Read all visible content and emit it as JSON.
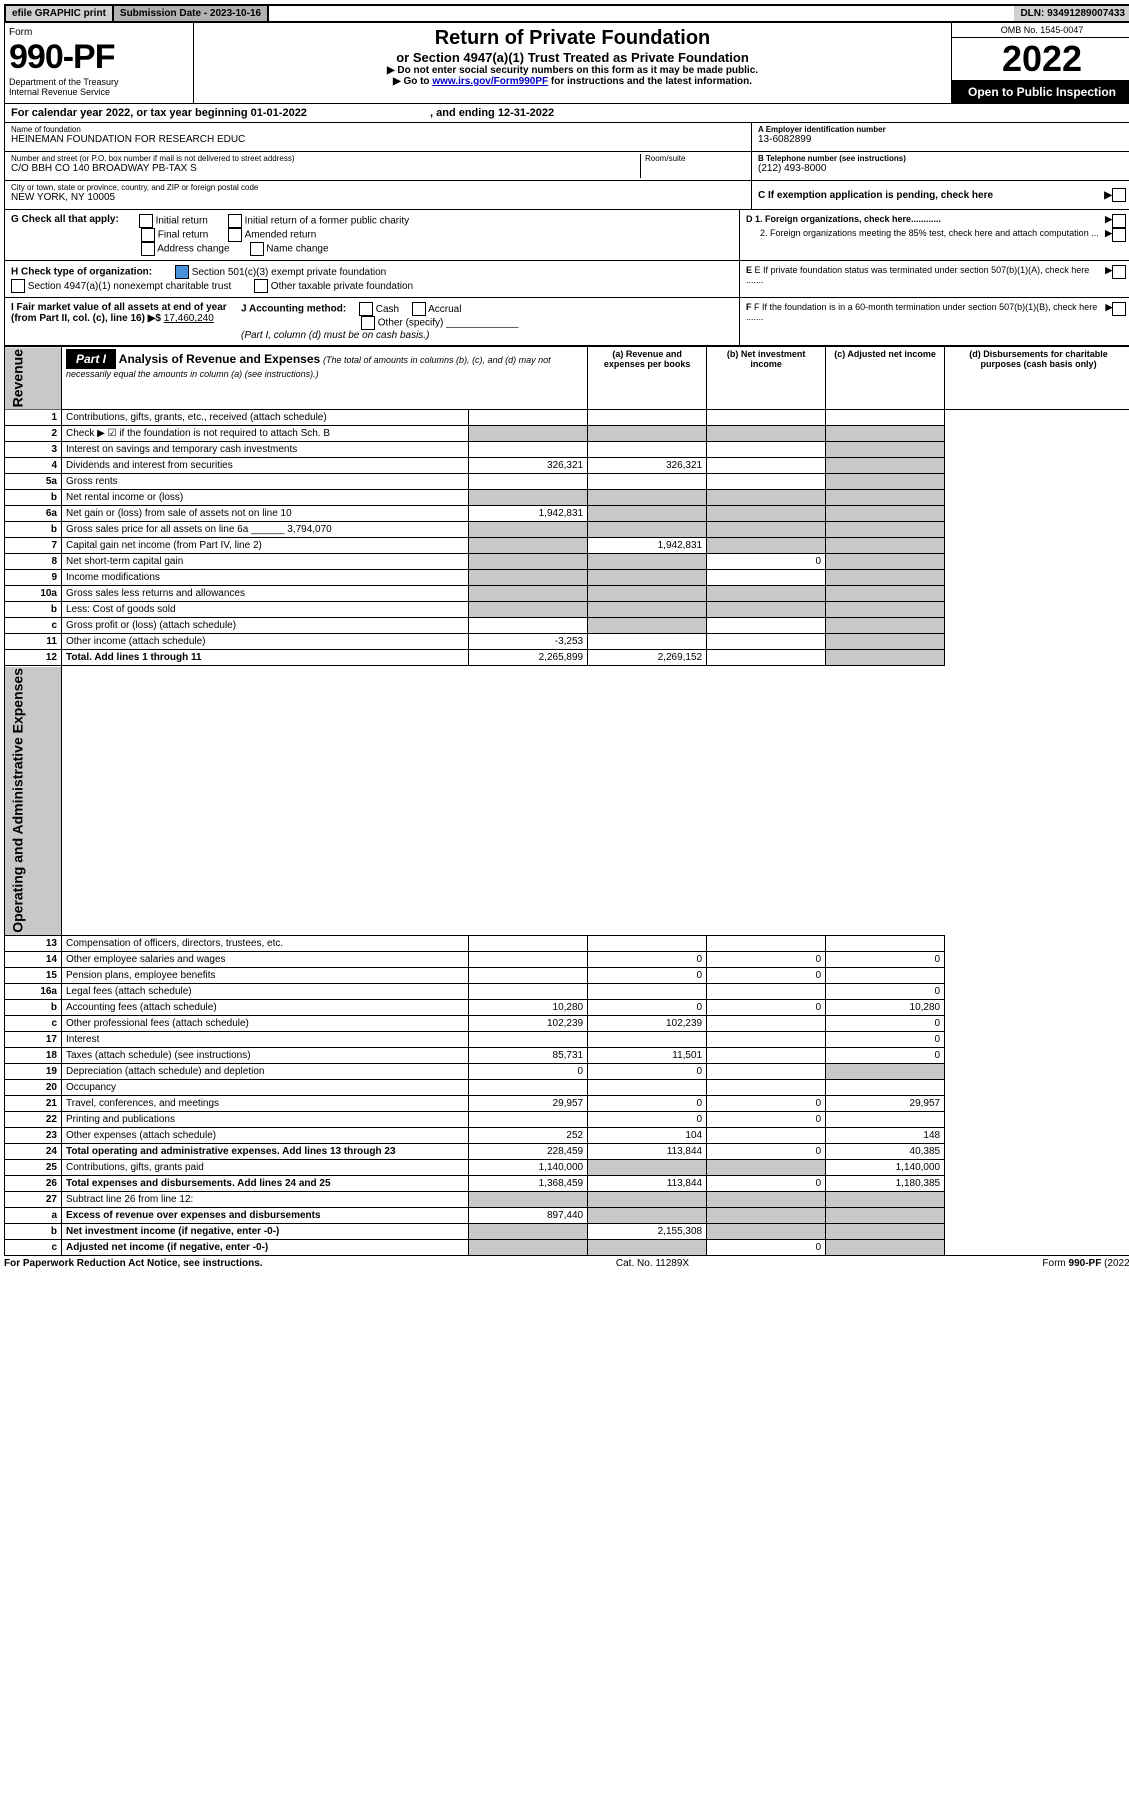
{
  "topbar": {
    "efile": "efile GRAPHIC print",
    "subdate_label": "Submission Date - ",
    "subdate": "2023-10-16",
    "dln_label": "DLN: ",
    "dln": "93491289007433"
  },
  "header": {
    "form_label": "Form",
    "form_no": "990-PF",
    "dept1": "Department of the Treasury",
    "dept2": "Internal Revenue Service",
    "title1": "Return of Private Foundation",
    "title2": "or Section 4947(a)(1) Trust Treated as Private Foundation",
    "title3": "▶ Do not enter social security numbers on this form as it may be made public.",
    "title4a": "▶ Go to ",
    "title4link": "www.irs.gov/Form990PF",
    "title4b": " for instructions and the latest information.",
    "omb": "OMB No. 1545-0047",
    "year": "2022",
    "open": "Open to Public Inspection"
  },
  "calyear": {
    "text1": "For calendar year 2022, or tax year beginning ",
    "begin": "01-01-2022",
    "text2": " , and ending ",
    "end": "12-31-2022"
  },
  "name": {
    "label": "Name of foundation",
    "value": "HEINEMAN FOUNDATION FOR RESEARCH EDUC"
  },
  "ein": {
    "label": "A Employer identification number",
    "value": "13-6082899"
  },
  "address": {
    "label": "Number and street (or P.O. box number if mail is not delivered to street address)",
    "value": "C/O BBH CO 140 BROADWAY PB-TAX S",
    "room_label": "Room/suite"
  },
  "phone": {
    "label": "B Telephone number (see instructions)",
    "value": "(212) 493-8000"
  },
  "city": {
    "label": "City or town, state or province, country, and ZIP or foreign postal code",
    "value": "NEW YORK, NY  10005"
  },
  "c_label": "C If exemption application is pending, check here",
  "g": {
    "label": "G Check all that apply:",
    "opt1": "Initial return",
    "opt2": "Initial return of a former public charity",
    "opt3": "Final return",
    "opt4": "Amended return",
    "opt5": "Address change",
    "opt6": "Name change"
  },
  "d": {
    "d1": "D 1. Foreign organizations, check here............",
    "d2": "2. Foreign organizations meeting the 85% test, check here and attach computation ..."
  },
  "h": {
    "label": "H Check type of organization:",
    "opt1": "Section 501(c)(3) exempt private foundation",
    "opt2": "Section 4947(a)(1) nonexempt charitable trust",
    "opt3": "Other taxable private foundation"
  },
  "e_label": "E If private foundation status was terminated under section 507(b)(1)(A), check here .......",
  "i": {
    "label": "I Fair market value of all assets at end of year (from Part II, col. (c), line 16) ▶$ ",
    "value": "17,460,240"
  },
  "j": {
    "label": "J Accounting method:",
    "cash": "Cash",
    "accrual": "Accrual",
    "other": "Other (specify)",
    "note": "(Part I, column (d) must be on cash basis.)"
  },
  "f_label": "F If the foundation is in a 60-month termination under section 507(b)(1)(B), check here .......",
  "part1": {
    "label": "Part I",
    "title": "Analysis of Revenue and Expenses",
    "subtitle": " (The total of amounts in columns (b), (c), and (d) may not necessarily equal the amounts in column (a) (see instructions).)",
    "col_a": "(a) Revenue and expenses per books",
    "col_b": "(b) Net investment income",
    "col_c": "(c) Adjusted net income",
    "col_d": "(d) Disbursements for charitable purposes (cash basis only)"
  },
  "sidelabels": {
    "revenue": "Revenue",
    "expenses": "Operating and Administrative Expenses"
  },
  "rows": [
    {
      "n": "1",
      "d": "",
      "a": "",
      "b": "",
      "c": "",
      "sa": false,
      "sb": false,
      "sc": false,
      "sd": false
    },
    {
      "n": "2",
      "d": "",
      "a": "",
      "b": "",
      "c": "",
      "sa": true,
      "sb": true,
      "sc": true,
      "sd": true
    },
    {
      "n": "3",
      "d": "",
      "a": "",
      "b": "",
      "c": "",
      "sa": false,
      "sb": false,
      "sc": false,
      "sd": true
    },
    {
      "n": "4",
      "d": "",
      "a": "326,321",
      "b": "326,321",
      "c": "",
      "sa": false,
      "sb": false,
      "sc": false,
      "sd": true
    },
    {
      "n": "5a",
      "d": "",
      "a": "",
      "b": "",
      "c": "",
      "sa": false,
      "sb": false,
      "sc": false,
      "sd": true
    },
    {
      "n": "b",
      "d": "",
      "a": "",
      "b": "",
      "c": "",
      "sa": true,
      "sb": true,
      "sc": true,
      "sd": true
    },
    {
      "n": "6a",
      "d": "",
      "a": "1,942,831",
      "b": "",
      "c": "",
      "sa": false,
      "sb": true,
      "sc": true,
      "sd": true
    },
    {
      "n": "b",
      "d": "",
      "a": "",
      "b": "",
      "c": "",
      "sa": true,
      "sb": true,
      "sc": true,
      "sd": true
    },
    {
      "n": "7",
      "d": "",
      "a": "",
      "b": "1,942,831",
      "c": "",
      "sa": true,
      "sb": false,
      "sc": true,
      "sd": true
    },
    {
      "n": "8",
      "d": "",
      "a": "",
      "b": "",
      "c": "0",
      "sa": true,
      "sb": true,
      "sc": false,
      "sd": true
    },
    {
      "n": "9",
      "d": "",
      "a": "",
      "b": "",
      "c": "",
      "sa": true,
      "sb": true,
      "sc": false,
      "sd": true
    },
    {
      "n": "10a",
      "d": "",
      "a": "",
      "b": "",
      "c": "",
      "sa": true,
      "sb": true,
      "sc": true,
      "sd": true
    },
    {
      "n": "b",
      "d": "",
      "a": "",
      "b": "",
      "c": "",
      "sa": true,
      "sb": true,
      "sc": true,
      "sd": true
    },
    {
      "n": "c",
      "d": "",
      "a": "",
      "b": "",
      "c": "",
      "sa": false,
      "sb": true,
      "sc": false,
      "sd": true
    },
    {
      "n": "11",
      "d": "",
      "a": "-3,253",
      "b": "",
      "c": "",
      "sa": false,
      "sb": false,
      "sc": false,
      "sd": true
    },
    {
      "n": "12",
      "d": "",
      "a": "2,265,899",
      "b": "2,269,152",
      "c": "",
      "sa": false,
      "sb": false,
      "sc": false,
      "sd": true,
      "bold": true
    },
    {
      "n": "13",
      "d": "",
      "a": "",
      "b": "",
      "c": "",
      "sa": false,
      "sb": false,
      "sc": false,
      "sd": false
    },
    {
      "n": "14",
      "d": "0",
      "a": "",
      "b": "0",
      "c": "0",
      "sa": false,
      "sb": false,
      "sc": false,
      "sd": false
    },
    {
      "n": "15",
      "d": "",
      "a": "",
      "b": "0",
      "c": "0",
      "sa": false,
      "sb": false,
      "sc": false,
      "sd": false
    },
    {
      "n": "16a",
      "d": "0",
      "a": "",
      "b": "",
      "c": "",
      "sa": false,
      "sb": false,
      "sc": false,
      "sd": false
    },
    {
      "n": "b",
      "d": "10,280",
      "a": "10,280",
      "b": "0",
      "c": "0",
      "sa": false,
      "sb": false,
      "sc": false,
      "sd": false
    },
    {
      "n": "c",
      "d": "0",
      "a": "102,239",
      "b": "102,239",
      "c": "",
      "sa": false,
      "sb": false,
      "sc": false,
      "sd": false
    },
    {
      "n": "17",
      "d": "0",
      "a": "",
      "b": "",
      "c": "",
      "sa": false,
      "sb": false,
      "sc": false,
      "sd": false
    },
    {
      "n": "18",
      "d": "0",
      "a": "85,731",
      "b": "11,501",
      "c": "",
      "sa": false,
      "sb": false,
      "sc": false,
      "sd": false
    },
    {
      "n": "19",
      "d": "",
      "a": "0",
      "b": "0",
      "c": "",
      "sa": false,
      "sb": false,
      "sc": false,
      "sd": true
    },
    {
      "n": "20",
      "d": "",
      "a": "",
      "b": "",
      "c": "",
      "sa": false,
      "sb": false,
      "sc": false,
      "sd": false
    },
    {
      "n": "21",
      "d": "29,957",
      "a": "29,957",
      "b": "0",
      "c": "0",
      "sa": false,
      "sb": false,
      "sc": false,
      "sd": false
    },
    {
      "n": "22",
      "d": "",
      "a": "",
      "b": "0",
      "c": "0",
      "sa": false,
      "sb": false,
      "sc": false,
      "sd": false
    },
    {
      "n": "23",
      "d": "148",
      "a": "252",
      "b": "104",
      "c": "",
      "sa": false,
      "sb": false,
      "sc": false,
      "sd": false
    },
    {
      "n": "24",
      "d": "40,385",
      "a": "228,459",
      "b": "113,844",
      "c": "0",
      "sa": false,
      "sb": false,
      "sc": false,
      "sd": false,
      "bold": true
    },
    {
      "n": "25",
      "d": "1,140,000",
      "a": "1,140,000",
      "b": "",
      "c": "",
      "sa": false,
      "sb": true,
      "sc": true,
      "sd": false
    },
    {
      "n": "26",
      "d": "1,180,385",
      "a": "1,368,459",
      "b": "113,844",
      "c": "0",
      "sa": false,
      "sb": false,
      "sc": false,
      "sd": false,
      "bold": true
    },
    {
      "n": "27",
      "d": "",
      "a": "",
      "b": "",
      "c": "",
      "sa": true,
      "sb": true,
      "sc": true,
      "sd": true
    },
    {
      "n": "a",
      "d": "",
      "a": "897,440",
      "b": "",
      "c": "",
      "sa": false,
      "sb": true,
      "sc": true,
      "sd": true,
      "bold": true
    },
    {
      "n": "b",
      "d": "",
      "a": "",
      "b": "2,155,308",
      "c": "",
      "sa": true,
      "sb": false,
      "sc": true,
      "sd": true,
      "bold": true
    },
    {
      "n": "c",
      "d": "",
      "a": "",
      "b": "",
      "c": "0",
      "sa": true,
      "sb": true,
      "sc": false,
      "sd": true,
      "bold": true
    }
  ],
  "footer": {
    "left": "For Paperwork Reduction Act Notice, see instructions.",
    "mid": "Cat. No. 11289X",
    "right": "Form 990-PF (2022)"
  },
  "colors": {
    "shaded": "#c8c8c8",
    "topbar_light": "#d0d0d0",
    "topbar_dark": "#b0b0b0",
    "checked": "#4a90d9",
    "link": "#0000cc"
  }
}
